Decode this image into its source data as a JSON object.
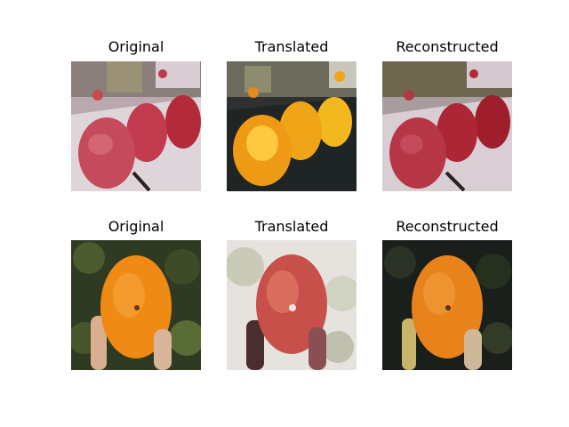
{
  "figure": {
    "rows": [
      {
        "panels": [
          {
            "title": "Original",
            "subject": "three red apples on a table"
          },
          {
            "title": "Translated",
            "subject": "three orange-yellow fruits on a dark table"
          },
          {
            "title": "Reconstructed",
            "subject": "three red apples on a table"
          }
        ]
      },
      {
        "panels": [
          {
            "title": "Original",
            "subject": "orange held in a hand against foliage"
          },
          {
            "title": "Translated",
            "subject": "red apple-like fruit held in a hand on pale background"
          },
          {
            "title": "Reconstructed",
            "subject": "orange held in a hand against dark foliage"
          }
        ]
      }
    ]
  }
}
